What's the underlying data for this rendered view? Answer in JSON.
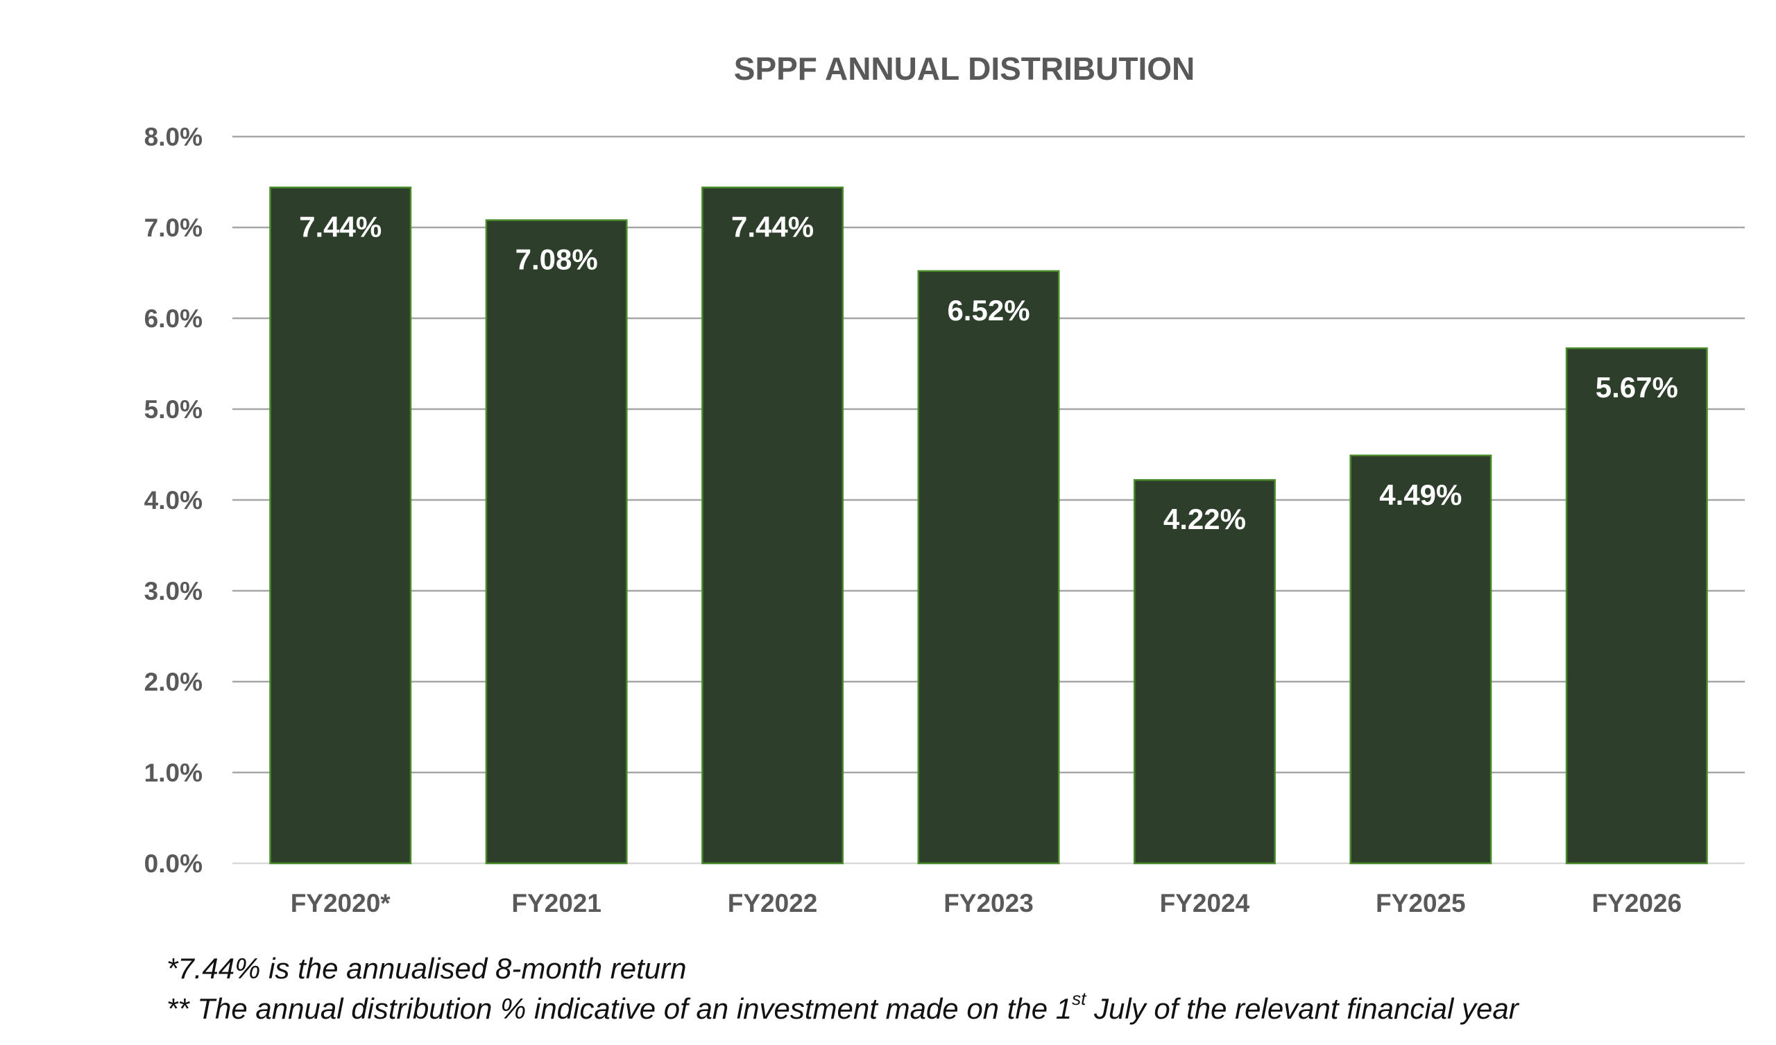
{
  "chart_data": {
    "type": "bar",
    "title": "SPPF ANNUAL DISTRIBUTION",
    "categories": [
      "FY2020*",
      "FY2021",
      "FY2022",
      "FY2023",
      "FY2024",
      "FY2025",
      "FY2026"
    ],
    "values": [
      7.44,
      7.08,
      7.44,
      6.52,
      4.22,
      4.49,
      5.67
    ],
    "data_labels": [
      "7.44%",
      "7.08%",
      "7.44%",
      "6.52%",
      "4.22%",
      "4.49%",
      "5.67%"
    ],
    "y_ticks": [
      0,
      1,
      2,
      3,
      4,
      5,
      6,
      7,
      8
    ],
    "y_tick_labels": [
      "0.0%",
      "1.0%",
      "2.0%",
      "3.0%",
      "4.0%",
      "5.0%",
      "6.0%",
      "7.0%",
      "8.0%"
    ],
    "ylim": [
      0,
      8
    ],
    "xlabel": "",
    "ylabel": "",
    "grid": true,
    "legend": "none",
    "colors": {
      "bar_fill": "#2d3e2b",
      "bar_stroke": "#4a8a2a",
      "gridline": "#a6a6a6",
      "baseline": "#d9d9d9"
    }
  },
  "footnotes": {
    "note1": "*7.44% is the annualised 8-month return",
    "note2_before": "** The annual distribution % indicative of an investment made on the 1",
    "note2_sup": "st",
    "note2_after": " July  of the relevant financial year"
  }
}
